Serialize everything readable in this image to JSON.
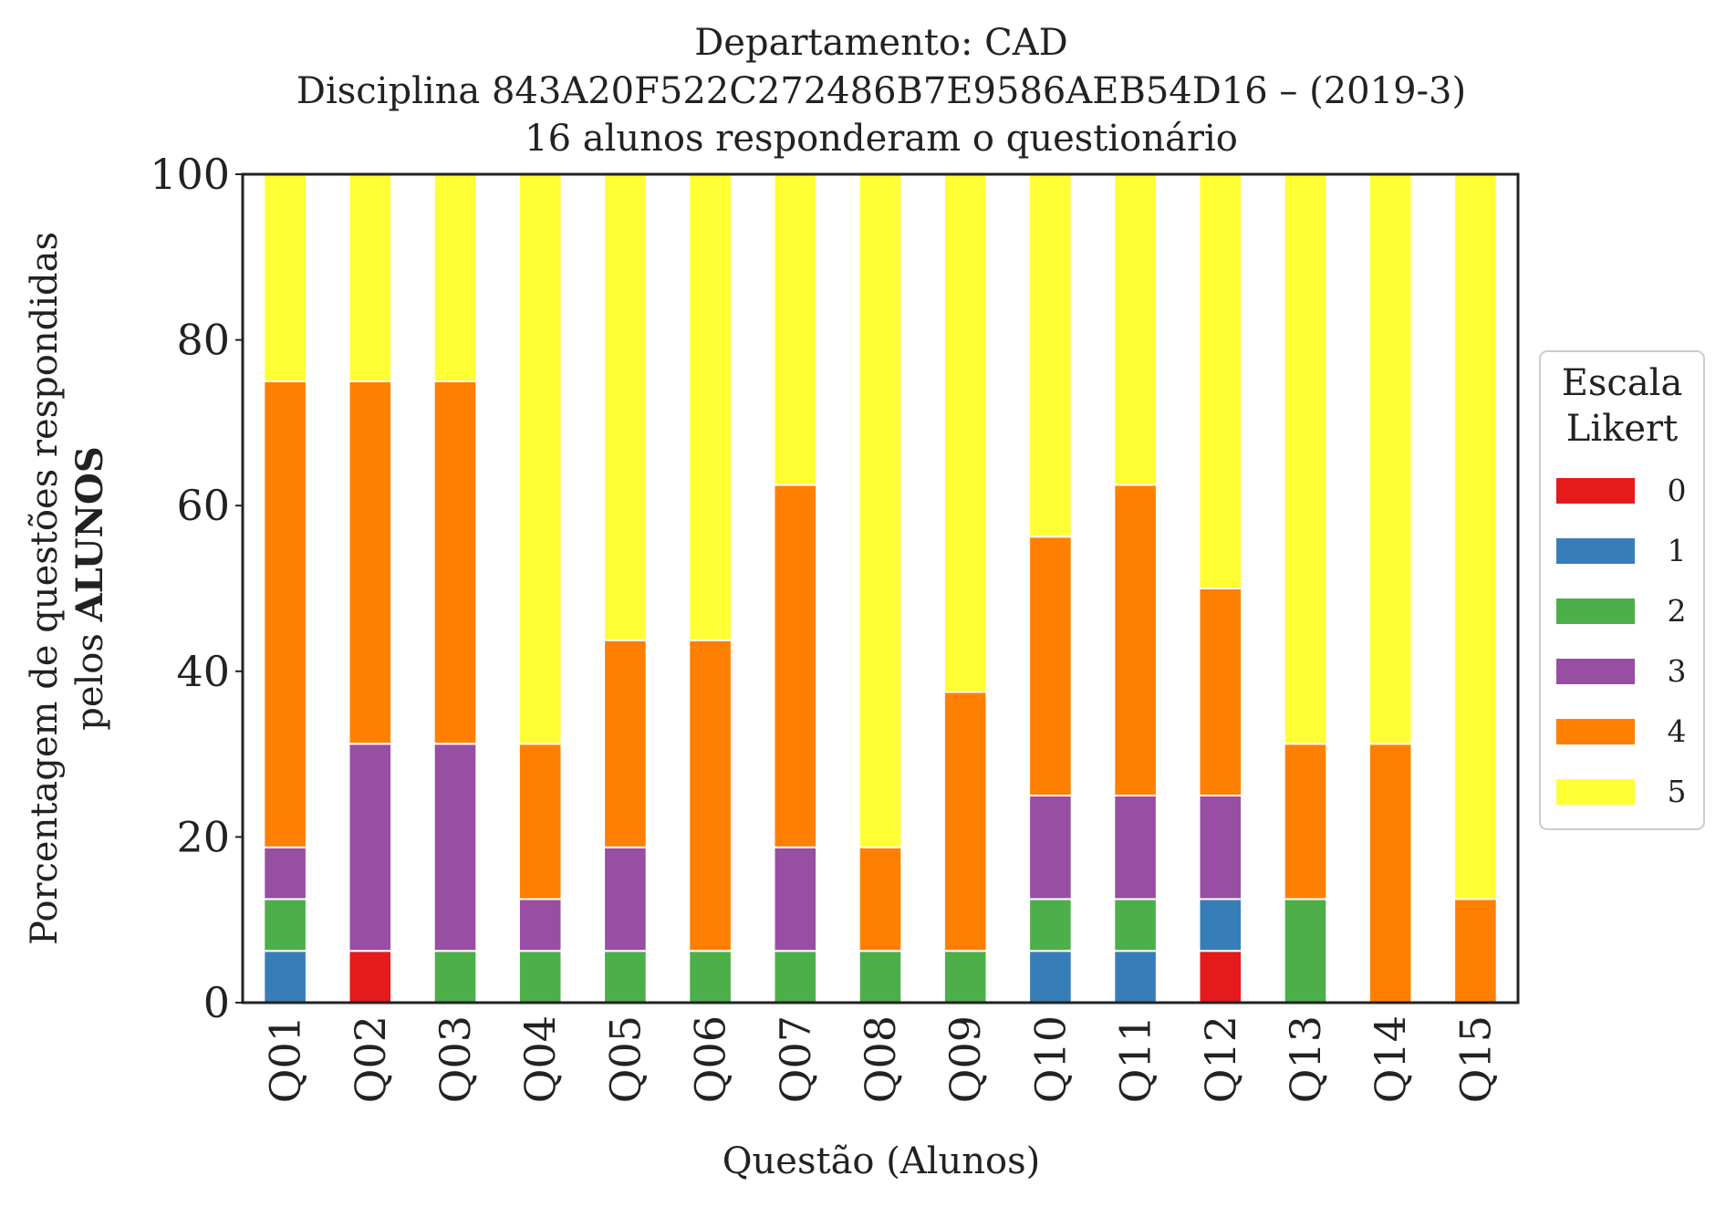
{
  "chart_data": {
    "type": "bar",
    "stacked": true,
    "title": [
      "Departamento: CAD",
      "Disciplina 843A20F522C272486B7E9586AEB54D16 – (2019-3)",
      "16 alunos responderam o questionário"
    ],
    "xlabel": "Questão (Alunos)",
    "ylabel_line1": "Porcentagem de questões respondidas",
    "ylabel_line2_prefix": "pelos ",
    "ylabel_line2_bold": "ALUNOS",
    "ylim": [
      0,
      100
    ],
    "yticks": [
      "0",
      "20",
      "40",
      "60",
      "80",
      "100"
    ],
    "grid": false,
    "legend": {
      "title": [
        "Escala",
        "Likert"
      ],
      "placement": "right"
    },
    "categories": [
      "Q01",
      "Q02",
      "Q03",
      "Q04",
      "Q05",
      "Q06",
      "Q07",
      "Q08",
      "Q09",
      "Q10",
      "Q11",
      "Q12",
      "Q13",
      "Q14",
      "Q15"
    ],
    "series": [
      {
        "name": "0",
        "color": "#e41a1c",
        "values": [
          0,
          6.25,
          0,
          0,
          0,
          0,
          0,
          0,
          0,
          0,
          0,
          6.25,
          0,
          0,
          0
        ]
      },
      {
        "name": "1",
        "color": "#377eb8",
        "values": [
          6.25,
          0,
          0,
          0,
          0,
          0,
          0,
          0,
          0,
          6.25,
          6.25,
          6.25,
          0,
          0,
          0
        ]
      },
      {
        "name": "2",
        "color": "#4daf4a",
        "values": [
          6.25,
          0,
          6.25,
          6.25,
          6.25,
          6.25,
          6.25,
          6.25,
          6.25,
          6.25,
          6.25,
          0,
          12.5,
          0,
          0
        ]
      },
      {
        "name": "3",
        "color": "#984ea3",
        "values": [
          6.25,
          25,
          25,
          6.25,
          12.5,
          0,
          12.5,
          0,
          0,
          12.5,
          12.5,
          12.5,
          0,
          0,
          0
        ]
      },
      {
        "name": "4",
        "color": "#ff7f00",
        "values": [
          56.25,
          43.75,
          43.75,
          18.75,
          25,
          37.5,
          43.75,
          12.5,
          31.25,
          31.25,
          37.5,
          25,
          18.75,
          31.25,
          12.5
        ]
      },
      {
        "name": "5",
        "color": "#ffff33",
        "values": [
          25,
          25,
          25,
          68.75,
          56.25,
          56.25,
          37.5,
          81.25,
          62.5,
          43.75,
          37.5,
          50,
          68.75,
          68.75,
          87.5
        ]
      }
    ]
  }
}
